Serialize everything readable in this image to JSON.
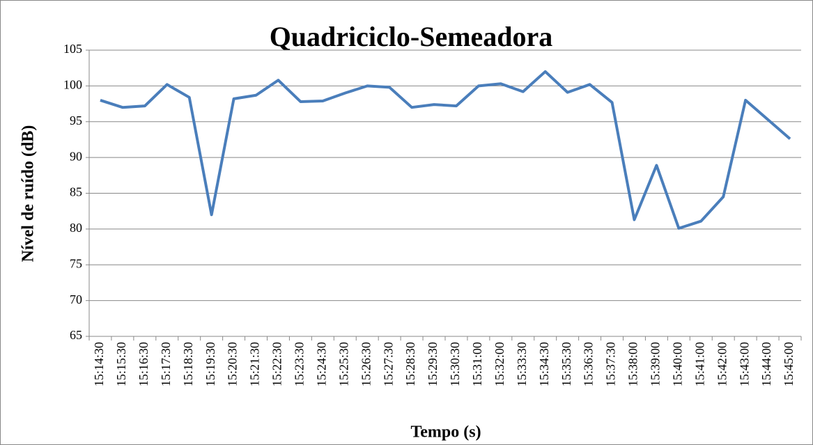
{
  "chart_data": {
    "type": "line",
    "title": "Quadriciclo-Semeadora",
    "x_label": "Tempo (s)",
    "y_label": "Nível de ruído (dB)",
    "categories": [
      "15:14:30",
      "15:15:30",
      "15:16:30",
      "15:17:30",
      "15:18:30",
      "15:19:30",
      "15:20:30",
      "15:21:30",
      "15:22:30",
      "15:23:30",
      "15:24:30",
      "15:25:30",
      "15:26:30",
      "15:27:30",
      "15:28:30",
      "15:29:30",
      "15:30:30",
      "15:31:00",
      "15:32:00",
      "15:33:30",
      "15:34:30",
      "15:35:30",
      "15:36:30",
      "15:37:30",
      "15:38:00",
      "15:39:00",
      "15:40:00",
      "15:41:00",
      "15:42:00",
      "15:43:00",
      "15:44:00",
      "15:45:00"
    ],
    "values": [
      98,
      97,
      97.2,
      100.2,
      98.4,
      82,
      98.2,
      98.7,
      100.8,
      97.8,
      97.9,
      99,
      100,
      99.8,
      97,
      97.4,
      97.2,
      100,
      100.3,
      99.2,
      102,
      99.1,
      100.2,
      97.7,
      81.3,
      88.9,
      80.1,
      81.1,
      84.5,
      98,
      95.3,
      92.6
    ],
    "color": "#4a7ebb",
    "ylim": [
      65,
      105
    ],
    "yticks": [
      65,
      70,
      75,
      80,
      85,
      90,
      95,
      100,
      105
    ],
    "grid": true
  }
}
